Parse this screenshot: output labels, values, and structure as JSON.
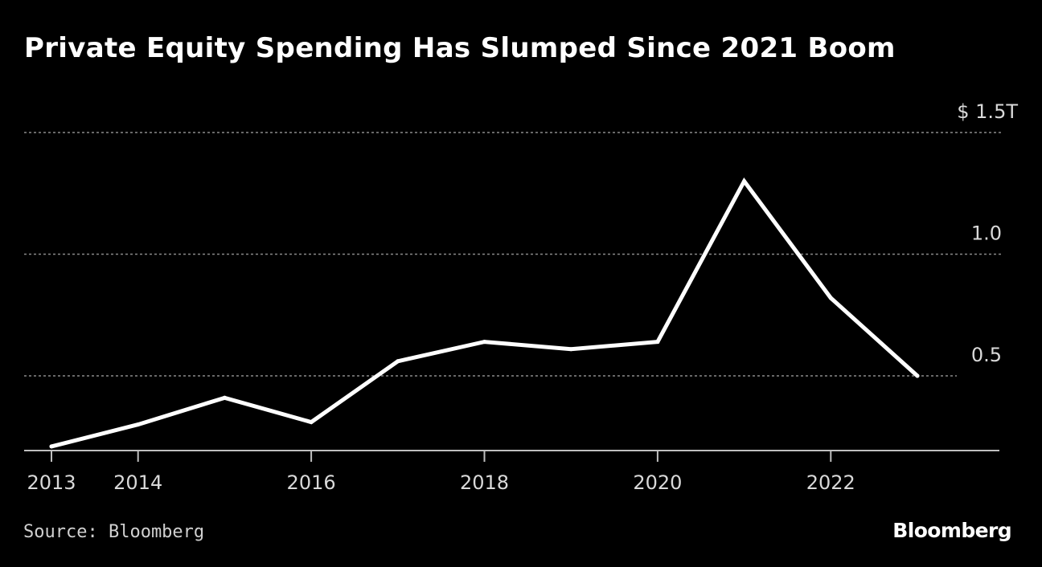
{
  "chart_data": {
    "type": "line",
    "title": "Private Equity Spending Has Slumped Since 2021 Boom",
    "x": [
      2013,
      2014,
      2015,
      2016,
      2017,
      2018,
      2019,
      2020,
      2021,
      2022,
      2023
    ],
    "series": [
      {
        "name": "Private equity spending",
        "values": [
          0.21,
          0.3,
          0.41,
          0.31,
          0.56,
          0.64,
          0.61,
          0.64,
          1.3,
          0.82,
          0.5
        ]
      }
    ],
    "unit": "$ trillions",
    "xlabel": "",
    "ylabel": "",
    "xlim": [
      2012.7,
      2024.0
    ],
    "ylim": [
      0.2,
      1.5
    ],
    "x_ticks": [
      2013,
      2014,
      2016,
      2018,
      2020,
      2022
    ],
    "x_tick_labels": [
      "2013",
      "2014",
      "2016",
      "2018",
      "2020",
      "2022"
    ],
    "y_ticks": [
      0.5,
      1.0,
      1.5
    ],
    "y_tick_labels": [
      "0.5",
      "1.0",
      "$ 1.5T"
    ],
    "grid": "dotted horizontal",
    "line_color": "#ffffff"
  },
  "footer": {
    "source": "Source: Bloomberg",
    "brand": "Bloomberg"
  },
  "colors": {
    "background": "#000000",
    "text": "#ffffff",
    "gridline": "#8a8a8a",
    "tick_text": "#d9d9d9"
  }
}
